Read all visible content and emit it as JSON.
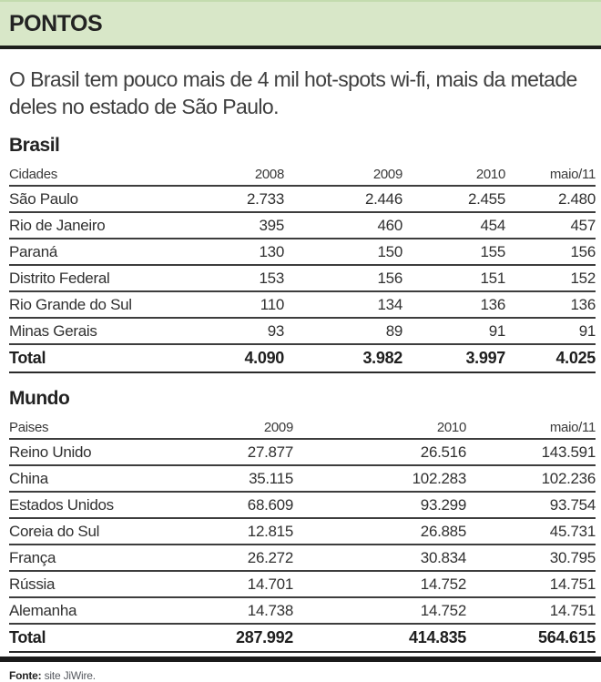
{
  "header": {
    "title": "PONTOS"
  },
  "intro": "O Brasil tem pouco mais de 4 mil hot-spots wi-fi, mais da metade deles no estado de São Paulo.",
  "brasil": {
    "title": "Brasil",
    "columns": [
      "Cidades",
      "2008",
      "2009",
      "2010",
      "maio/11"
    ],
    "rows": [
      {
        "label": "São Paulo",
        "values": [
          "2.733",
          "2.446",
          "2.455",
          "2.480"
        ]
      },
      {
        "label": "Rio de Janeiro",
        "values": [
          "395",
          "460",
          "454",
          "457"
        ]
      },
      {
        "label": "Paraná",
        "values": [
          "130",
          "150",
          "155",
          "156"
        ]
      },
      {
        "label": "Distrito Federal",
        "values": [
          "153",
          "156",
          "151",
          "152"
        ]
      },
      {
        "label": "Rio Grande do Sul",
        "values": [
          "110",
          "134",
          "136",
          "136"
        ]
      },
      {
        "label": "Minas Gerais",
        "values": [
          "93",
          "89",
          "91",
          "91"
        ]
      }
    ],
    "total": {
      "label": "Total",
      "values": [
        "4.090",
        "3.982",
        "3.997",
        "4.025"
      ]
    }
  },
  "mundo": {
    "title": "Mundo",
    "columns": [
      "Paises",
      "2009",
      "2010",
      "maio/11"
    ],
    "rows": [
      {
        "label": "Reino Unido",
        "values": [
          "27.877",
          "26.516",
          "143.591"
        ]
      },
      {
        "label": "China",
        "values": [
          "35.115",
          "102.283",
          "102.236"
        ]
      },
      {
        "label": "Estados Unidos",
        "values": [
          "68.609",
          "93.299",
          "93.754"
        ]
      },
      {
        "label": "Coreia do Sul",
        "values": [
          "12.815",
          "26.885",
          "45.731"
        ]
      },
      {
        "label": "França",
        "values": [
          "26.272",
          "30.834",
          "30.795"
        ]
      },
      {
        "label": "Rússia",
        "values": [
          "14.701",
          "14.752",
          "14.751"
        ]
      },
      {
        "label": "Alemanha",
        "values": [
          "14.738",
          "14.752",
          "14.751"
        ]
      }
    ],
    "total": {
      "label": "Total",
      "values": [
        "287.992",
        "414.835",
        "564.615"
      ]
    }
  },
  "footer": {
    "source_label": "Fonte:",
    "source_text": "site JiWire."
  },
  "colors": {
    "band_green": "#d8e7c8",
    "rule_dark": "#1d1f1c",
    "text_dark": "#2e2e2e"
  },
  "chart_data": [
    {
      "type": "table",
      "title": "Brasil",
      "subtitle": "Hot-spots wi-fi por cidade",
      "columns": [
        "Cidades",
        "2008",
        "2009",
        "2010",
        "maio/11"
      ],
      "rows": [
        [
          "São Paulo",
          2733,
          2446,
          2455,
          2480
        ],
        [
          "Rio de Janeiro",
          395,
          460,
          454,
          457
        ],
        [
          "Paraná",
          130,
          150,
          155,
          156
        ],
        [
          "Distrito Federal",
          153,
          156,
          151,
          152
        ],
        [
          "Rio Grande do Sul",
          110,
          134,
          136,
          136
        ],
        [
          "Minas Gerais",
          93,
          89,
          91,
          91
        ],
        [
          "Total",
          4090,
          3982,
          3997,
          4025
        ]
      ]
    },
    {
      "type": "table",
      "title": "Mundo",
      "subtitle": "Hot-spots wi-fi por país",
      "columns": [
        "Paises",
        "2009",
        "2010",
        "maio/11"
      ],
      "rows": [
        [
          "Reino Unido",
          27877,
          26516,
          143591
        ],
        [
          "China",
          35115,
          102283,
          102236
        ],
        [
          "Estados Unidos",
          68609,
          93299,
          93754
        ],
        [
          "Coreia do Sul",
          12815,
          26885,
          45731
        ],
        [
          "França",
          26272,
          30834,
          30795
        ],
        [
          "Rússia",
          14701,
          14752,
          14751
        ],
        [
          "Alemanha",
          14738,
          14752,
          14751
        ],
        [
          "Total",
          287992,
          414835,
          564615
        ]
      ]
    }
  ]
}
